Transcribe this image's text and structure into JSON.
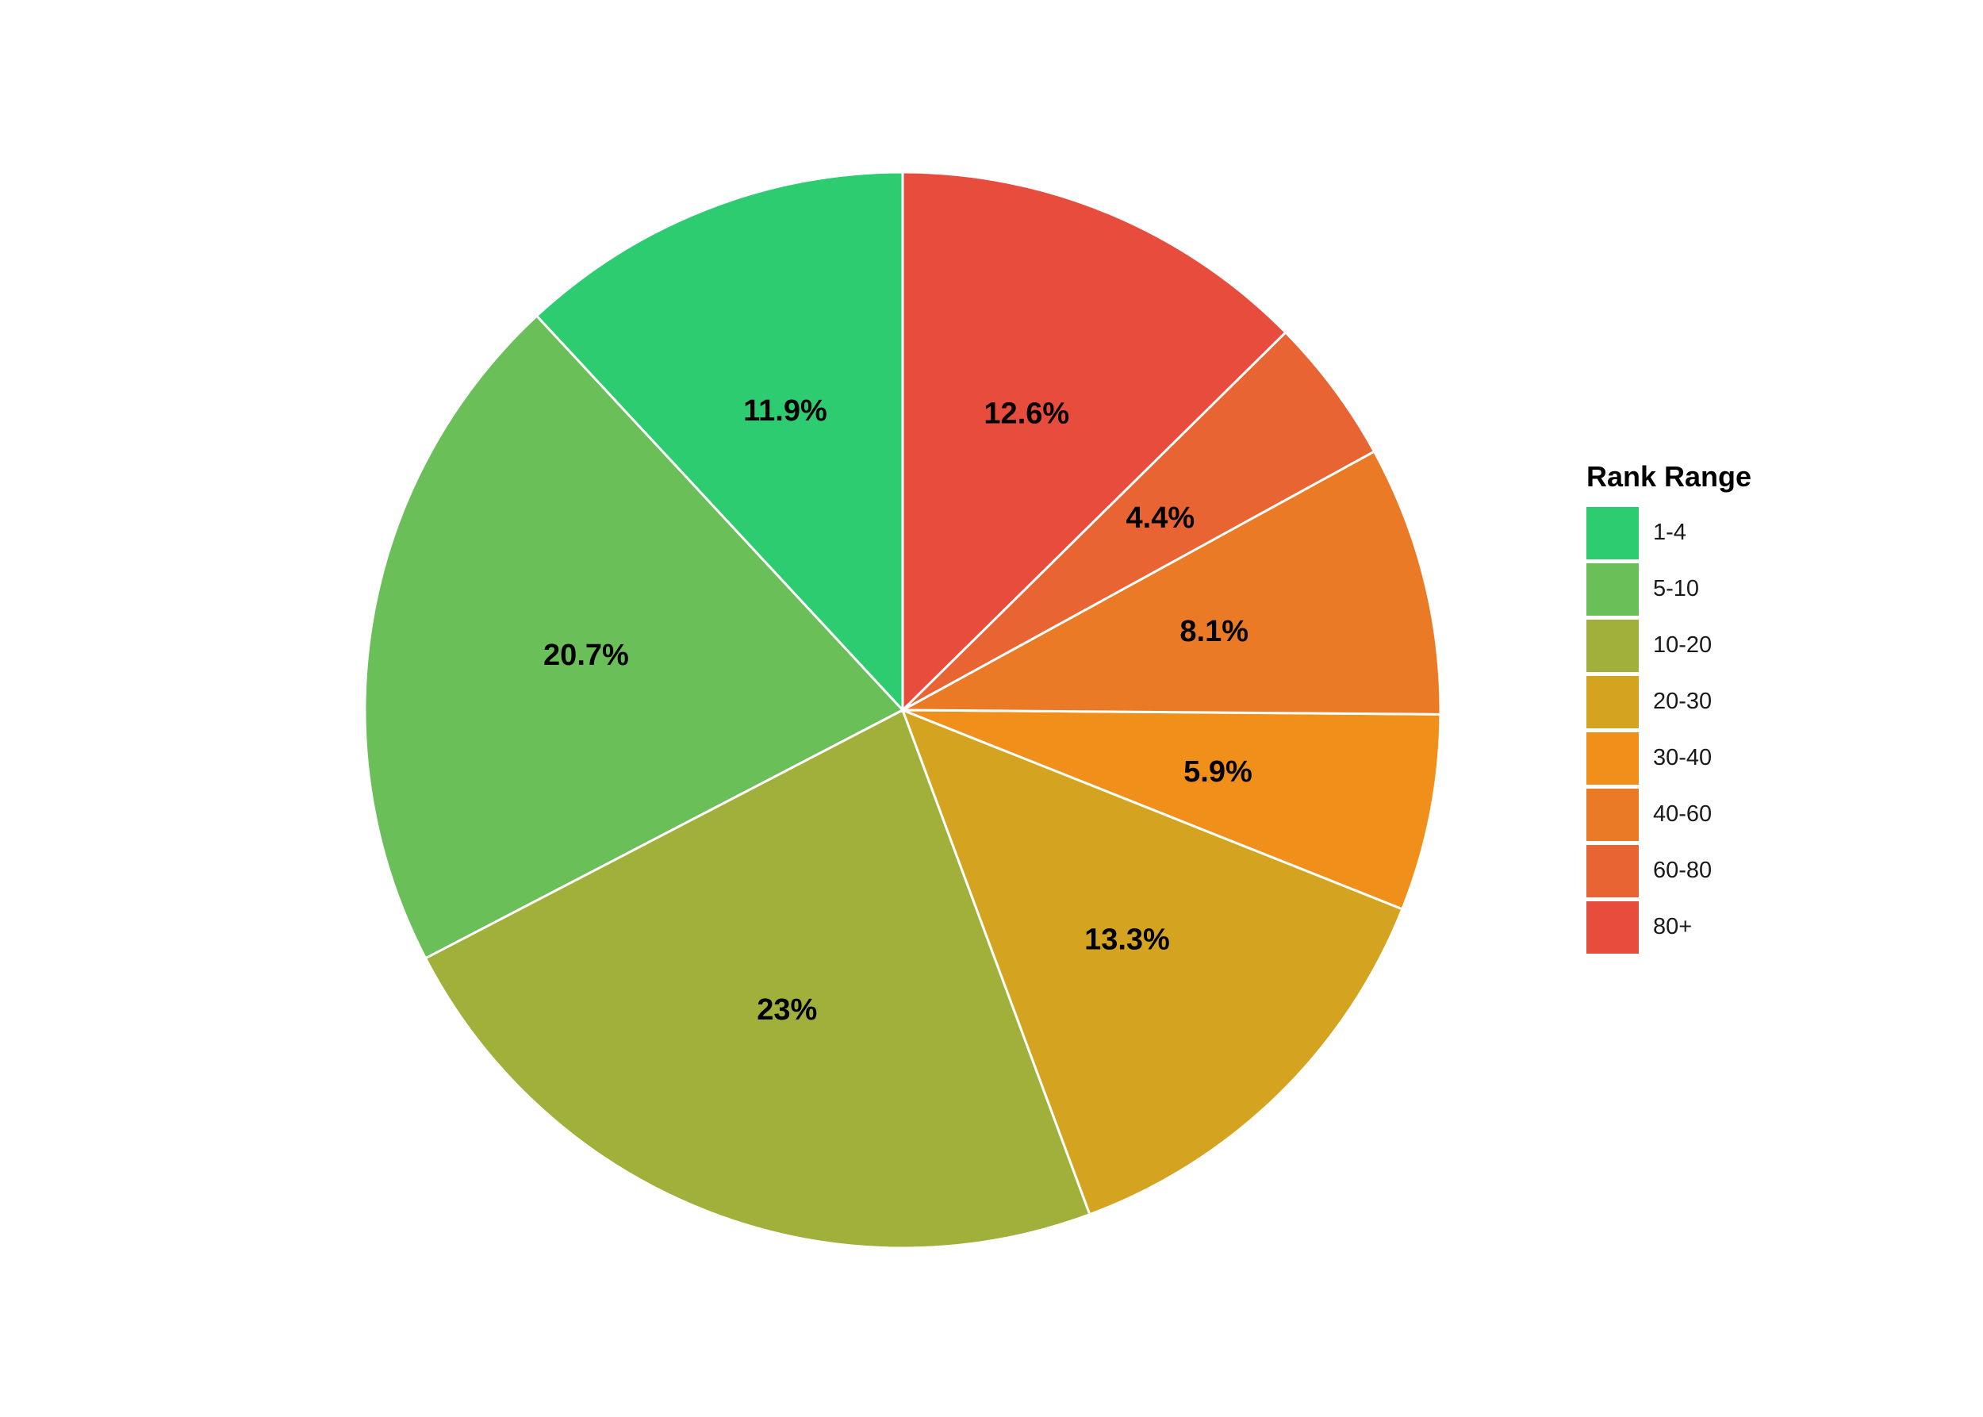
{
  "chart_data": {
    "type": "pie",
    "legend": {
      "title": "Rank Range",
      "placement": "right"
    },
    "categories": [
      "1-4",
      "5-10",
      "10-20",
      "20-30",
      "30-40",
      "40-60",
      "60-80",
      "80+"
    ],
    "values": [
      11.9,
      20.7,
      23.0,
      13.3,
      5.9,
      8.1,
      4.4,
      12.6
    ],
    "labels": [
      "11.9%",
      "20.7%",
      "23%",
      "13.3%",
      "5.9%",
      "8.1%",
      "4.4%",
      "12.6%"
    ],
    "colors": [
      "#2ecc71",
      "#6abf58",
      "#a0b03b",
      "#d4a420",
      "#f0901a",
      "#ea7a26",
      "#e86432",
      "#e74c3c"
    ],
    "direction": "counterclockwise",
    "start": "top"
  }
}
